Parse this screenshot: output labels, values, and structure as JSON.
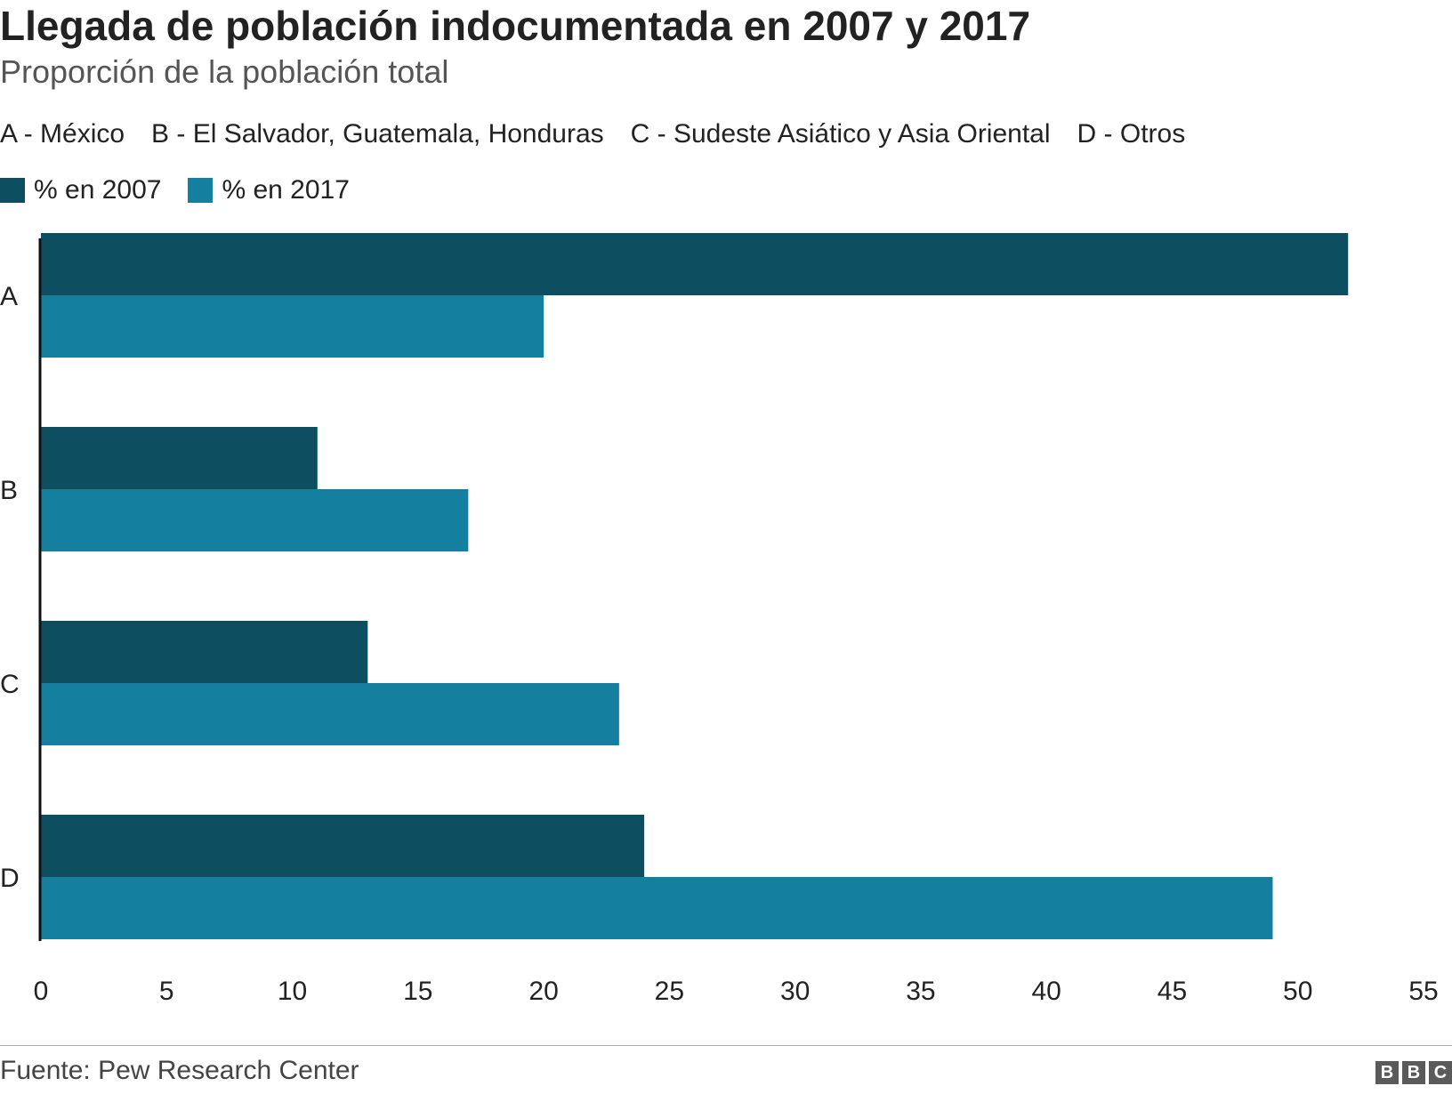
{
  "title": "Llegada de población indocumentada en 2007 y 2017",
  "subtitle": "Proporción de la población total",
  "category_key": [
    "A - México",
    "B - El Salvador, Guatemala, Honduras",
    "C - Sudeste Asiático y Asia Oriental",
    "D - Otros"
  ],
  "source": "Fuente: Pew Research Center",
  "logo": [
    "B",
    "B",
    "C"
  ],
  "colors": {
    "series_2007": "#0d4f61",
    "series_2017": "#157fa0",
    "axis": "#111111",
    "text": "#222222"
  },
  "chart_data": {
    "type": "bar",
    "orientation": "horizontal",
    "categories": [
      "A",
      "B",
      "C",
      "D"
    ],
    "series": [
      {
        "name": "% en 2007",
        "values": [
          52,
          11,
          13,
          24
        ]
      },
      {
        "name": "% en 2017",
        "values": [
          20,
          17,
          23,
          49
        ]
      }
    ],
    "xlim": [
      0,
      55
    ],
    "xticks": [
      0,
      5,
      10,
      15,
      20,
      25,
      30,
      35,
      40,
      45,
      50,
      55
    ],
    "grid": false,
    "legend": "top-left"
  }
}
